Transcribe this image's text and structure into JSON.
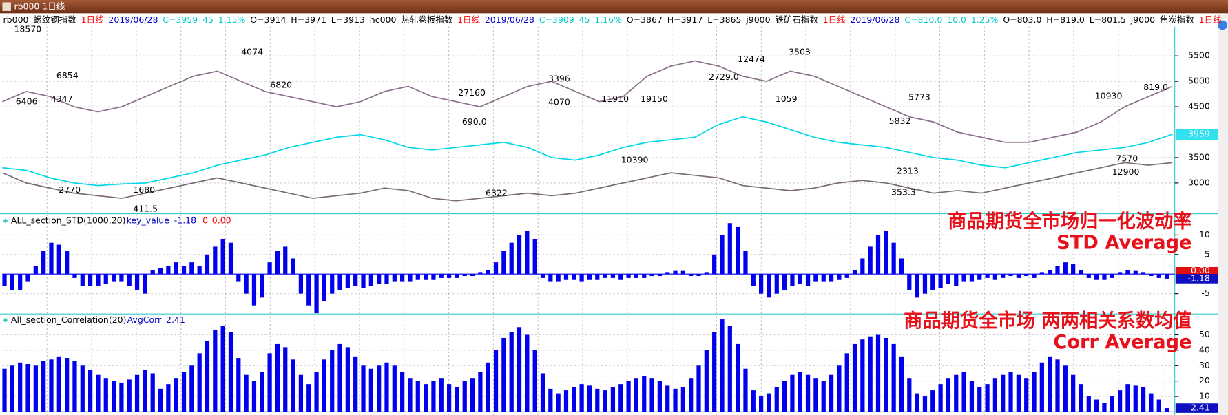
{
  "window_title": "rb000 1日线",
  "header": [
    {
      "text": "rb000",
      "color": "#000000"
    },
    {
      "text": "螺纹钢指数",
      "color": "#000000"
    },
    {
      "text": "1日线",
      "color": "#ff0000"
    },
    {
      "text": "2019/06/28",
      "color": "#0000cc"
    },
    {
      "text": "C=3959",
      "color": "#00cccc"
    },
    {
      "text": "45",
      "color": "#00cccc"
    },
    {
      "text": "1.15%",
      "color": "#00cccc"
    },
    {
      "text": "O=3914",
      "color": "#000000"
    },
    {
      "text": "H=3971",
      "color": "#000000"
    },
    {
      "text": "L=3913",
      "color": "#000000"
    },
    {
      "text": "hc000",
      "color": "#000000"
    },
    {
      "text": "热轧卷板指数",
      "color": "#000000"
    },
    {
      "text": "1日线",
      "color": "#ff0000"
    },
    {
      "text": "2019/06/28",
      "color": "#0000cc"
    },
    {
      "text": "C=3909",
      "color": "#00cccc"
    },
    {
      "text": "45",
      "color": "#00cccc"
    },
    {
      "text": "1.16%",
      "color": "#00cccc"
    },
    {
      "text": "O=3867",
      "color": "#000000"
    },
    {
      "text": "H=3917",
      "color": "#000000"
    },
    {
      "text": "L=3865",
      "color": "#000000"
    },
    {
      "text": "j9000",
      "color": "#000000"
    },
    {
      "text": "铁矿石指数",
      "color": "#000000"
    },
    {
      "text": "1日线",
      "color": "#ff0000"
    },
    {
      "text": "2019/06/28",
      "color": "#0000cc"
    },
    {
      "text": "C=810.0",
      "color": "#00cccc"
    },
    {
      "text": "10.0",
      "color": "#00cccc"
    },
    {
      "text": "1.25%",
      "color": "#00cccc"
    },
    {
      "text": "O=803.0",
      "color": "#000000"
    },
    {
      "text": "H=819.0",
      "color": "#000000"
    },
    {
      "text": "L=801.5",
      "color": "#000000"
    },
    {
      "text": "j9000",
      "color": "#000000"
    },
    {
      "text": "焦炭指数",
      "color": "#000000"
    },
    {
      "text": "1日线",
      "color": "#ff0000"
    }
  ],
  "chart_data": [
    {
      "type": "line",
      "ylim": [
        2410,
        6060
      ],
      "yticks": [
        3000,
        3500,
        4500,
        5000,
        5500
      ],
      "grid": true,
      "annotations": [
        "18570",
        "6854",
        "6406",
        "4347",
        "2770",
        "1680",
        "411.5",
        "4074",
        "6820",
        "27160",
        "3396",
        "4070",
        "11910",
        "19150",
        "690.0",
        "6322",
        "10390",
        "2729.0",
        "12474",
        "3503",
        "1059",
        "5773",
        "5832",
        "2313",
        "353.3",
        "10930",
        "819.0",
        "12900",
        "7570"
      ],
      "series": [
        {
          "color": "#8b6f8b",
          "values": [
            4600,
            4800,
            4700,
            4500,
            4400,
            4500,
            4700,
            4900,
            5100,
            5200,
            5000,
            4800,
            4700,
            4600,
            4500,
            4600,
            4800,
            4900,
            4700,
            4600,
            4500,
            4700,
            4900,
            5000,
            4800,
            4600,
            4700,
            5100,
            5300,
            5400,
            5300,
            5100,
            5000,
            5200,
            5100,
            4900,
            4700,
            4500,
            4300,
            4200,
            4000,
            3900,
            3800,
            3800,
            3900,
            4000,
            4200,
            4500,
            4700,
            4900
          ]
        },
        {
          "color": "#7a6a7a",
          "values": [
            3200,
            3000,
            2900,
            2800,
            2750,
            2700,
            2800,
            2900,
            3000,
            3100,
            3000,
            2900,
            2800,
            2700,
            2750,
            2800,
            2900,
            2850,
            2700,
            2650,
            2700,
            2750,
            2800,
            2750,
            2800,
            2900,
            3000,
            3100,
            3200,
            3150,
            3100,
            2950,
            2900,
            2850,
            2900,
            3000,
            3050,
            3000,
            2900,
            2800,
            2850,
            2800,
            2900,
            3000,
            3100,
            3200,
            3300,
            3400,
            3350,
            3400
          ]
        },
        {
          "color": "#00d8e8",
          "values": [
            3300,
            3250,
            3100,
            3000,
            2950,
            2980,
            3000,
            3100,
            3200,
            3350,
            3450,
            3550,
            3700,
            3800,
            3900,
            3950,
            3850,
            3700,
            3650,
            3700,
            3750,
            3800,
            3700,
            3500,
            3450,
            3550,
            3700,
            3800,
            3850,
            3900,
            4150,
            4300,
            4200,
            4050,
            3900,
            3800,
            3750,
            3700,
            3600,
            3500,
            3450,
            3350,
            3300,
            3400,
            3500,
            3600,
            3650,
            3700,
            3800,
            3959
          ]
        }
      ]
    },
    {
      "type": "bar",
      "title": "ALL_section_STD(1000,20)",
      "indicator": "key_value",
      "extra": [
        "0",
        "0.00"
      ],
      "overlay": [
        "商品期货全市场归一化波动率",
        "STD Average"
      ],
      "color": "#0000ee",
      "ylim": [
        -10,
        15
      ],
      "yticks": [
        10,
        5,
        -5
      ],
      "values": [
        -3,
        -4,
        -4,
        -2,
        2,
        6,
        8,
        7.5,
        6,
        -1,
        -3,
        -3,
        -3,
        -2.5,
        -2,
        -2,
        -3,
        -4,
        -5,
        1,
        1.5,
        2,
        3,
        2,
        3,
        2,
        5,
        7,
        9,
        8,
        -2,
        -5,
        -8,
        -6,
        3,
        6,
        7,
        4,
        -5,
        -8,
        -10,
        -7,
        -5,
        -4,
        -3.5,
        -3,
        -3.5,
        -3,
        -2.5,
        -2.5,
        -2,
        -2,
        -2,
        -1.5,
        -1.5,
        -1.5,
        -1,
        -1,
        -1,
        -0.5,
        -0.5,
        0.5,
        1,
        3,
        6,
        8,
        10,
        11,
        9,
        -1,
        -2,
        -2,
        -1.5,
        -1.5,
        -2,
        -1.5,
        -1.5,
        -1,
        -1,
        -1.5,
        -1,
        -1,
        -1,
        -0.5,
        -0.5,
        0.5,
        0.8,
        0.8,
        -0.5,
        -0.5,
        0.5,
        5,
        10,
        13,
        12,
        6,
        -3,
        -5,
        -6,
        -5,
        -4,
        -3,
        -2.5,
        -3,
        -2,
        -2,
        -2,
        -1.5,
        -1,
        1,
        4,
        7,
        10,
        11,
        8,
        4,
        -4,
        -6,
        -5,
        -4,
        -3.5,
        -2.5,
        -3,
        -2,
        -2,
        -1.5,
        -1,
        -1.5,
        -1,
        -0.5,
        -1,
        -0.5,
        -1,
        0.5,
        1,
        2,
        3,
        2.5,
        1,
        -1,
        -1.5,
        -1.5,
        -1,
        0.5,
        1,
        0.8,
        0.5,
        -0.5,
        -1,
        -1.18
      ]
    },
    {
      "type": "bar",
      "title": "All_section_Correlation(20)",
      "indicator": "AvgCorr",
      "overlay": [
        "商品期货全市场 两两相关系数均值",
        "Corr Average"
      ],
      "color": "#0000ee",
      "ylim": [
        0,
        63
      ],
      "yticks": [
        10,
        20,
        30,
        40,
        50
      ],
      "values": [
        28,
        30,
        32,
        31,
        30,
        33,
        34,
        36,
        35,
        33,
        30,
        27,
        24,
        22,
        20,
        19,
        21,
        24,
        27,
        25,
        15,
        18,
        22,
        26,
        30,
        38,
        46,
        53,
        56,
        52,
        35,
        24,
        20,
        26,
        38,
        44,
        42,
        34,
        24,
        18,
        26,
        34,
        40,
        44,
        42,
        36,
        30,
        28,
        30,
        32,
        30,
        26,
        22,
        20,
        18,
        20,
        22,
        18,
        16,
        20,
        22,
        26,
        32,
        40,
        48,
        52,
        55,
        50,
        40,
        25,
        15,
        12,
        14,
        16,
        18,
        17,
        15,
        14,
        16,
        18,
        20,
        22,
        23,
        22,
        20,
        17,
        15,
        16,
        22,
        30,
        40,
        52,
        60,
        56,
        44,
        28,
        14,
        10,
        12,
        16,
        20,
        24,
        26,
        24,
        22,
        20,
        24,
        30,
        38,
        44,
        47,
        49,
        50,
        48,
        44,
        36,
        22,
        12,
        10,
        14,
        18,
        22,
        24,
        26,
        20,
        16,
        18,
        22,
        24,
        26,
        24,
        22,
        26,
        32,
        36,
        34,
        30,
        24,
        18,
        10,
        8,
        6,
        10,
        14,
        18,
        17,
        16,
        12,
        8,
        2.41
      ]
    }
  ]
}
